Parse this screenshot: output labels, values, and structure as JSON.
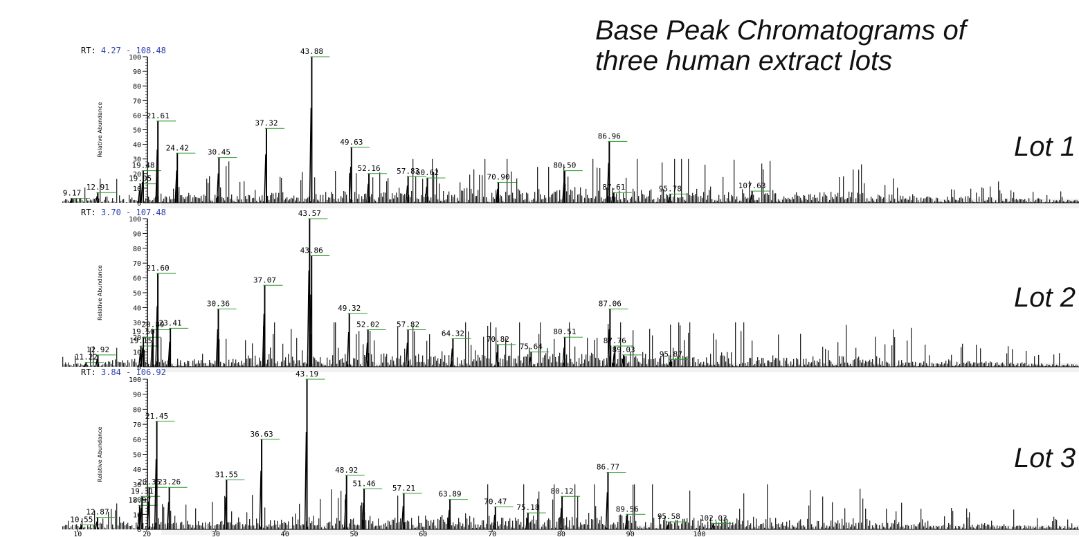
{
  "title_line1": "Base Peak Chromatograms of",
  "title_line2": "three human extract lots",
  "rt_prefix": "RT:",
  "chart_data": [
    {
      "type": "line",
      "name": "Lot 1",
      "label": "Lot 1",
      "rt_range": "4.27 - 108.48",
      "ylabel": "Relative Abundance",
      "ylim": [
        0,
        100
      ],
      "yticks": [
        0,
        10,
        20,
        30,
        40,
        50,
        60,
        70,
        80,
        90,
        100
      ],
      "peaks": [
        {
          "x": 9.17,
          "y": 3,
          "label": "9.17"
        },
        {
          "x": 12.91,
          "y": 7,
          "label": "12.91"
        },
        {
          "x": 19.05,
          "y": 13,
          "label": "19.05"
        },
        {
          "x": 19.48,
          "y": 22,
          "label": "19.48"
        },
        {
          "x": 21.61,
          "y": 56,
          "label": "21.61"
        },
        {
          "x": 24.42,
          "y": 34,
          "label": "24.42"
        },
        {
          "x": 30.45,
          "y": 31,
          "label": "30.45"
        },
        {
          "x": 37.32,
          "y": 51,
          "label": "37.32"
        },
        {
          "x": 43.88,
          "y": 100,
          "label": "43.88"
        },
        {
          "x": 49.63,
          "y": 38,
          "label": "49.63"
        },
        {
          "x": 52.16,
          "y": 20,
          "label": "52.16"
        },
        {
          "x": 57.83,
          "y": 18,
          "label": "57.83"
        },
        {
          "x": 60.62,
          "y": 17,
          "label": "60.62"
        },
        {
          "x": 70.9,
          "y": 14,
          "label": "70.90"
        },
        {
          "x": 80.5,
          "y": 22,
          "label": "80.50"
        },
        {
          "x": 86.96,
          "y": 42,
          "label": "86.96"
        },
        {
          "x": 87.61,
          "y": 7,
          "label": "87.61"
        },
        {
          "x": 95.78,
          "y": 6,
          "label": "95.78"
        },
        {
          "x": 107.63,
          "y": 8,
          "label": "107.63"
        }
      ]
    },
    {
      "type": "line",
      "name": "Lot 2",
      "label": "Lot 2",
      "rt_range": "3.70 - 107.48",
      "ylabel": "Relative Abundance",
      "ylim": [
        0,
        100
      ],
      "yticks": [
        0,
        10,
        20,
        30,
        40,
        50,
        60,
        70,
        80,
        90,
        100
      ],
      "peaks": [
        {
          "x": 11.22,
          "y": 3,
          "label": "11.22"
        },
        {
          "x": 12.92,
          "y": 8,
          "label": "12.92"
        },
        {
          "x": 19.15,
          "y": 14,
          "label": "19.15"
        },
        {
          "x": 19.5,
          "y": 20,
          "label": "19.50"
        },
        {
          "x": 20.89,
          "y": 25,
          "label": "20.89"
        },
        {
          "x": 21.6,
          "y": 63,
          "label": "21.60"
        },
        {
          "x": 23.41,
          "y": 26,
          "label": "23.41"
        },
        {
          "x": 30.36,
          "y": 39,
          "label": "30.36"
        },
        {
          "x": 37.07,
          "y": 55,
          "label": "37.07"
        },
        {
          "x": 43.57,
          "y": 100,
          "label": "43.57"
        },
        {
          "x": 43.86,
          "y": 75,
          "label": "43.86"
        },
        {
          "x": 49.32,
          "y": 36,
          "label": "49.32"
        },
        {
          "x": 52.02,
          "y": 25,
          "label": "52.02"
        },
        {
          "x": 57.82,
          "y": 25,
          "label": "57.82"
        },
        {
          "x": 64.32,
          "y": 19,
          "label": "64.32"
        },
        {
          "x": 70.82,
          "y": 15,
          "label": "70.82"
        },
        {
          "x": 75.64,
          "y": 10,
          "label": "75.64"
        },
        {
          "x": 80.51,
          "y": 20,
          "label": "80.51"
        },
        {
          "x": 87.06,
          "y": 39,
          "label": "87.06"
        },
        {
          "x": 87.76,
          "y": 14,
          "label": "87.76"
        },
        {
          "x": 89.03,
          "y": 8,
          "label": "89.03"
        },
        {
          "x": 95.87,
          "y": 5,
          "label": "95.87"
        }
      ]
    },
    {
      "type": "line",
      "name": "Lot 3",
      "label": "Lot 3",
      "rt_range": "3.84 - 106.92",
      "ylabel": "Relative Abundance",
      "ylim": [
        0,
        100
      ],
      "yticks": [
        0,
        10,
        20,
        30,
        40,
        50,
        60,
        70,
        80,
        90,
        100
      ],
      "xlim": [
        3.84,
        106.92
      ],
      "xticks": [
        10,
        20,
        30,
        40,
        50,
        60,
        70,
        80,
        90,
        100
      ],
      "peaks": [
        {
          "x": 10.55,
          "y": 3,
          "label": "10.55"
        },
        {
          "x": 12.87,
          "y": 8,
          "label": "12.87"
        },
        {
          "x": 18.97,
          "y": 16,
          "label": "18.97"
        },
        {
          "x": 19.31,
          "y": 22,
          "label": "19.31"
        },
        {
          "x": 20.35,
          "y": 28,
          "label": "20.35"
        },
        {
          "x": 21.45,
          "y": 72,
          "label": "21.45"
        },
        {
          "x": 23.26,
          "y": 28,
          "label": "23.26"
        },
        {
          "x": 31.55,
          "y": 33,
          "label": "31.55"
        },
        {
          "x": 36.63,
          "y": 60,
          "label": "36.63"
        },
        {
          "x": 43.19,
          "y": 100,
          "label": "43.19"
        },
        {
          "x": 48.92,
          "y": 36,
          "label": "48.92"
        },
        {
          "x": 51.46,
          "y": 27,
          "label": "51.46"
        },
        {
          "x": 57.21,
          "y": 24,
          "label": "57.21"
        },
        {
          "x": 63.89,
          "y": 20,
          "label": "63.89"
        },
        {
          "x": 70.47,
          "y": 15,
          "label": "70.47"
        },
        {
          "x": 75.18,
          "y": 11,
          "label": "75.18"
        },
        {
          "x": 80.12,
          "y": 22,
          "label": "80.12"
        },
        {
          "x": 86.77,
          "y": 38,
          "label": "86.77"
        },
        {
          "x": 89.56,
          "y": 10,
          "label": "89.56"
        },
        {
          "x": 95.58,
          "y": 5,
          "label": "95.58"
        },
        {
          "x": 102.03,
          "y": 4,
          "label": "102.03"
        }
      ]
    }
  ]
}
